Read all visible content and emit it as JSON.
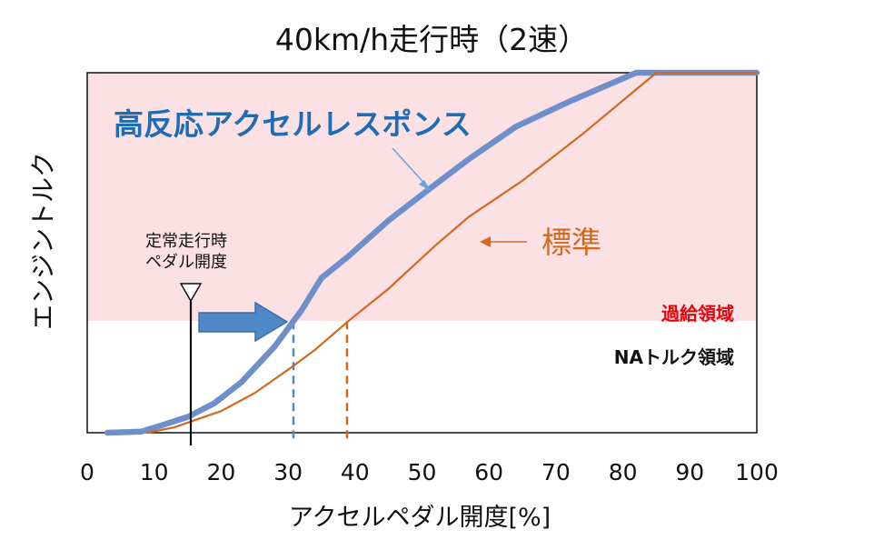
{
  "chart_data": {
    "type": "line",
    "title": "40km/h走行時（2速）",
    "xlabel": "アクセルペダル開度[%]",
    "ylabel": "エンジントルク",
    "xlim": [
      0,
      100
    ],
    "x_ticks": [
      0,
      10,
      20,
      30,
      40,
      50,
      60,
      70,
      80,
      90,
      100
    ],
    "ylim": [
      0,
      100
    ],
    "grid": false,
    "regions": [
      {
        "label": "過給領域",
        "y_from": 31,
        "y_to": 100,
        "color": "#fbe0e4",
        "label_color": "#e8000b"
      },
      {
        "label": "NAトルク領域",
        "y_from": 0,
        "y_to": 31,
        "color": "#ffffff",
        "label_color": "#111111"
      }
    ],
    "series": [
      {
        "name": "高反応アクセルレスポンス",
        "color": "#6e8fca",
        "x": [
          3,
          8,
          11,
          15,
          19,
          23,
          28,
          32,
          35,
          39,
          45,
          52,
          57,
          64,
          72,
          82,
          84,
          100
        ],
        "y": [
          0,
          0.3,
          2,
          4.4,
          8.2,
          14,
          24,
          34,
          43,
          49,
          59,
          69,
          76,
          85,
          92,
          100,
          100,
          100
        ]
      },
      {
        "name": "標準",
        "color": "#d2691e",
        "x": [
          9,
          13,
          20,
          25,
          30,
          34,
          39,
          45,
          52,
          57,
          65,
          74,
          85,
          100
        ],
        "y": [
          0,
          1.5,
          6,
          11,
          17.5,
          23,
          31,
          40,
          52,
          60,
          70,
          83,
          100,
          100
        ]
      }
    ],
    "annotations": [
      {
        "label": "定常走行時",
        "x": 15.4
      },
      {
        "label": "ペダル開度",
        "x": 15.4
      }
    ],
    "markers": [
      {
        "kind": "dashed-vline",
        "x": 30.8,
        "y_to": 31,
        "color": "#4f88c6"
      },
      {
        "kind": "dashed-vline",
        "x": 38.8,
        "y_to": 31,
        "color": "#d2691e"
      }
    ],
    "legend": "inline"
  }
}
